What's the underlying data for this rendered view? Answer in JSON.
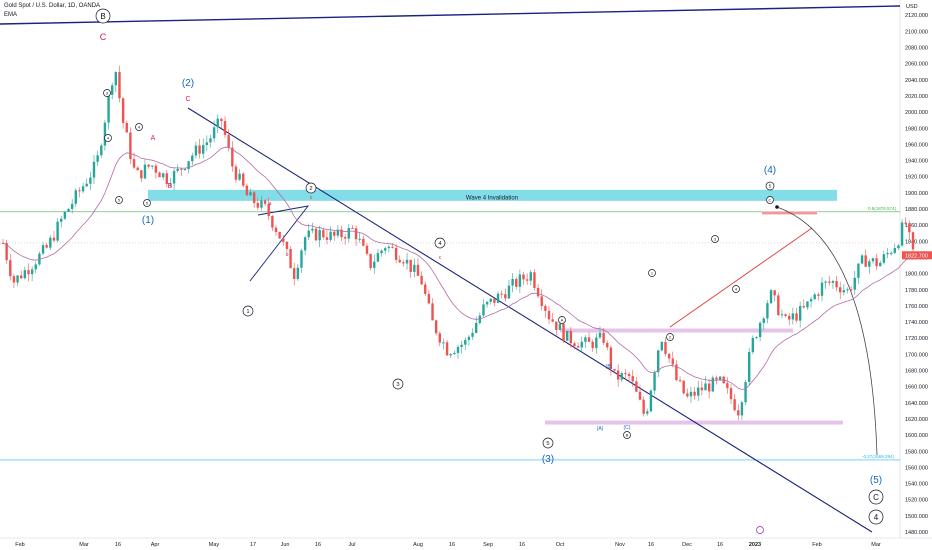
{
  "header": {
    "symbol": "Gold Spot / U.S. Dollar, 1D, OANDA",
    "indicator": "EMA"
  },
  "colors": {
    "up": "#26a69a",
    "down": "#ef5350",
    "ema": "#b56aa8",
    "trendline": "#1a237e",
    "zone": "#5ad1e0",
    "wave_blue": "#1565c0",
    "wave_red": "#d81b60",
    "grid_green": "#4caf50",
    "grid_blue": "#29b6f6",
    "price_tag": "#ef5350"
  },
  "chart_data": {
    "type": "candlestick",
    "y_axis": {
      "currency": "USD",
      "ylim": [
        1470,
        2125
      ],
      "ticks": [
        "1480.000",
        "1500.000",
        "1520.000",
        "1540.000",
        "1560.000",
        "1580.000",
        "1600.000",
        "1620.000",
        "1640.000",
        "1660.000",
        "1680.000",
        "1700.000",
        "1720.000",
        "1740.000",
        "1760.000",
        "1780.000",
        "1800.000",
        "1820.000",
        "1840.000",
        "1860.000",
        "1880.000",
        "1900.000",
        "1920.000",
        "1940.000",
        "1960.000",
        "1980.000",
        "2000.000",
        "2020.000",
        "2040.000",
        "2060.000",
        "2080.000",
        "2100.000",
        "2120.000"
      ]
    },
    "x_axis": {
      "ticks": [
        "Feb",
        "Mar",
        "16",
        "Apr",
        "May",
        "17",
        "Jun",
        "16",
        "Jul",
        "Aug",
        "16",
        "Sep",
        "16",
        "Oct",
        "Nov",
        "16",
        "Dec",
        "16",
        "2023",
        "Feb",
        "Mar"
      ]
    },
    "last_price": "1822.700",
    "ohlc_path": [
      [
        "2022-01-24",
        1838
      ],
      [
        "2022-01-28",
        1790
      ],
      [
        "2022-02-03",
        1808
      ],
      [
        "2022-02-10",
        1832
      ],
      [
        "2022-02-16",
        1870
      ],
      [
        "2022-02-24",
        1910
      ],
      [
        "2022-03-01",
        1935
      ],
      [
        "2022-03-08",
        2060
      ],
      [
        "2022-03-11",
        1990
      ],
      [
        "2022-03-16",
        1920
      ],
      [
        "2022-03-22",
        1935
      ],
      [
        "2022-03-28",
        1918
      ],
      [
        "2022-04-01",
        1925
      ],
      [
        "2022-04-06",
        1945
      ],
      [
        "2022-04-13",
        1965
      ],
      [
        "2022-04-18",
        1990
      ],
      [
        "2022-04-22",
        1935
      ],
      [
        "2022-04-28",
        1895
      ],
      [
        "2022-05-05",
        1880
      ],
      [
        "2022-05-10",
        1850
      ],
      [
        "2022-05-16",
        1800
      ],
      [
        "2022-05-20",
        1845
      ],
      [
        "2022-05-26",
        1850
      ],
      [
        "2022-06-01",
        1845
      ],
      [
        "2022-06-08",
        1855
      ],
      [
        "2022-06-14",
        1810
      ],
      [
        "2022-06-20",
        1835
      ],
      [
        "2022-06-27",
        1820
      ],
      [
        "2022-07-04",
        1790
      ],
      [
        "2022-07-08",
        1740
      ],
      [
        "2022-07-14",
        1705
      ],
      [
        "2022-07-21",
        1715
      ],
      [
        "2022-07-28",
        1758
      ],
      [
        "2022-08-04",
        1775
      ],
      [
        "2022-08-10",
        1790
      ],
      [
        "2022-08-15",
        1800
      ],
      [
        "2022-08-22",
        1748
      ],
      [
        "2022-08-29",
        1720
      ],
      [
        "2022-09-06",
        1712
      ],
      [
        "2022-09-12",
        1720
      ],
      [
        "2022-09-16",
        1672
      ],
      [
        "2022-09-22",
        1672
      ],
      [
        "2022-09-28",
        1622
      ],
      [
        "2022-10-04",
        1725
      ],
      [
        "2022-10-10",
        1668
      ],
      [
        "2022-10-14",
        1645
      ],
      [
        "2022-10-21",
        1660
      ],
      [
        "2022-10-27",
        1665
      ],
      [
        "2022-11-03",
        1630
      ],
      [
        "2022-11-08",
        1712
      ],
      [
        "2022-11-15",
        1775
      ],
      [
        "2022-11-21",
        1740
      ],
      [
        "2022-11-28",
        1755
      ],
      [
        "2022-12-05",
        1785
      ],
      [
        "2022-12-09",
        1790
      ],
      [
        "2022-12-15",
        1778
      ],
      [
        "2022-12-21",
        1818
      ],
      [
        "2022-12-27",
        1812
      ],
      [
        "2023-01-03",
        1840
      ],
      [
        "2023-01-06",
        1865
      ],
      [
        "2023-01-09",
        1822.7
      ]
    ],
    "horizontal_levels": [
      {
        "label": "0.5(1876.574)",
        "price": 1876.574
      },
      {
        "label": "-0.27(1569.294)",
        "price": 1569.294
      }
    ],
    "zones": [
      {
        "label": "Wave 4 Invalidation",
        "from": 1890,
        "to": 1900
      },
      {
        "label": "",
        "from": 1728,
        "to": 1732
      },
      {
        "label": "",
        "from": 1614,
        "to": 1618
      }
    ],
    "annotations": {
      "circled_black": [
        "B",
        "C",
        "4",
        "5",
        "1",
        "2",
        "3",
        "4",
        "5",
        "1",
        "2",
        "3",
        "4",
        "5",
        "2",
        "3",
        "1",
        "2",
        "4",
        "5",
        "C",
        "4"
      ],
      "blue": [
        "(2)",
        "(1)",
        "(4)",
        "(3)",
        "(5)",
        "(A)",
        "(B)",
        "(C)"
      ],
      "red": [
        "C",
        "A",
        "B",
        "c",
        "a",
        "b"
      ]
    }
  }
}
